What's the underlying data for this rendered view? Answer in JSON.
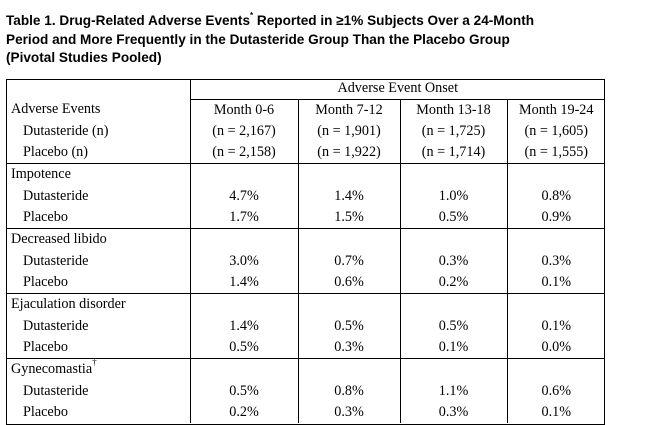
{
  "title": {
    "line1_a": "Table 1. Drug-Related Adverse Events",
    "line1_sup": "*",
    "line1_b": " Reported in ≥1% Subjects Over a 24-Month",
    "line2": "Period and More Frequently in the Dutasteride Group Than the Placebo Group",
    "line3": "(Pivotal Studies Pooled)"
  },
  "table": {
    "onset_header": "Adverse Event Onset",
    "col0_header": "Adverse Events",
    "row_dutasteride_n": "Dutasteride (n)",
    "row_placebo_n": "Placebo (n)",
    "columns": [
      {
        "label": "Month 0-6",
        "dut_n": "(n = 2,167)",
        "pla_n": "(n = 2,158)"
      },
      {
        "label": "Month 7-12",
        "dut_n": "(n = 1,901)",
        "pla_n": "(n = 1,922)"
      },
      {
        "label": "Month 13-18",
        "dut_n": "(n = 1,725)",
        "pla_n": "(n = 1,714)"
      },
      {
        "label": "Month 19-24",
        "dut_n": "(n = 1,605)",
        "pla_n": "(n = 1,555)"
      }
    ],
    "groups": [
      {
        "name": "Impotence",
        "sup": "",
        "rows": [
          {
            "label": "Dutasteride",
            "values": [
              "4.7%",
              "1.4%",
              "1.0%",
              "0.8%"
            ]
          },
          {
            "label": "Placebo",
            "values": [
              "1.7%",
              "1.5%",
              "0.5%",
              "0.9%"
            ]
          }
        ]
      },
      {
        "name": "Decreased libido",
        "sup": "",
        "rows": [
          {
            "label": "Dutasteride",
            "values": [
              "3.0%",
              "0.7%",
              "0.3%",
              "0.3%"
            ]
          },
          {
            "label": "Placebo",
            "values": [
              "1.4%",
              "0.6%",
              "0.2%",
              "0.1%"
            ]
          }
        ]
      },
      {
        "name": "Ejaculation disorder",
        "sup": "",
        "rows": [
          {
            "label": "Dutasteride",
            "values": [
              "1.4%",
              "0.5%",
              "0.5%",
              "0.1%"
            ]
          },
          {
            "label": "Placebo",
            "values": [
              "0.5%",
              "0.3%",
              "0.1%",
              "0.0%"
            ]
          }
        ]
      },
      {
        "name": "Gynecomastia",
        "sup": "†",
        "rows": [
          {
            "label": "Dutasteride",
            "values": [
              "0.5%",
              "0.8%",
              "1.1%",
              "0.6%"
            ]
          },
          {
            "label": "Placebo",
            "values": [
              "0.2%",
              "0.3%",
              "0.3%",
              "0.1%"
            ]
          }
        ]
      }
    ]
  }
}
